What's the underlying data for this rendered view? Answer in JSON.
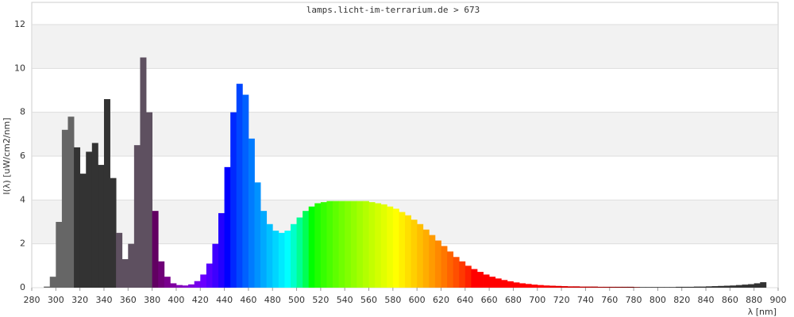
{
  "chart_data": {
    "type": "spectrum",
    "title": "lamps.licht-im-terrarium.de > 673",
    "y_label": "I(λ)  [uW/cm2/nm]",
    "x_label": "λ [nm]",
    "xlim": [
      280,
      900
    ],
    "ylim": [
      0,
      12
    ],
    "xticks": [
      280,
      300,
      320,
      340,
      360,
      380,
      400,
      420,
      440,
      460,
      480,
      500,
      520,
      540,
      560,
      580,
      600,
      620,
      640,
      660,
      680,
      700,
      720,
      740,
      760,
      780,
      800,
      820,
      840,
      860,
      880,
      900
    ],
    "yticks": [
      0,
      2,
      4,
      6,
      8,
      10,
      12
    ],
    "grid": true,
    "x": [
      290,
      295,
      300,
      305,
      310,
      315,
      320,
      325,
      330,
      335,
      340,
      345,
      350,
      355,
      360,
      365,
      370,
      375,
      380,
      385,
      390,
      395,
      400,
      405,
      410,
      415,
      420,
      425,
      430,
      435,
      440,
      445,
      450,
      455,
      460,
      465,
      470,
      475,
      480,
      485,
      490,
      495,
      500,
      505,
      510,
      515,
      520,
      525,
      530,
      535,
      540,
      545,
      550,
      555,
      560,
      565,
      570,
      575,
      580,
      585,
      590,
      595,
      600,
      605,
      610,
      615,
      620,
      625,
      630,
      635,
      640,
      645,
      650,
      655,
      660,
      665,
      670,
      675,
      680,
      685,
      690,
      695,
      700,
      705,
      710,
      715,
      720,
      725,
      730,
      735,
      740,
      745,
      750,
      755,
      760,
      765,
      770,
      775,
      780,
      785,
      790,
      795,
      800,
      805,
      810,
      815,
      820,
      825,
      830,
      835,
      840,
      845,
      850,
      855,
      860,
      865,
      870,
      875,
      880,
      885
    ],
    "values": [
      0.05,
      0.5,
      3.0,
      7.2,
      7.8,
      6.4,
      5.2,
      6.2,
      6.6,
      5.6,
      8.6,
      5.0,
      2.5,
      1.3,
      2.0,
      6.5,
      10.5,
      8.0,
      3.5,
      1.2,
      0.5,
      0.2,
      0.12,
      0.1,
      0.15,
      0.3,
      0.6,
      1.1,
      2.0,
      3.4,
      5.5,
      8.0,
      9.3,
      8.8,
      6.8,
      4.8,
      3.5,
      2.9,
      2.6,
      2.5,
      2.6,
      2.9,
      3.2,
      3.5,
      3.7,
      3.85,
      3.9,
      3.95,
      3.95,
      3.95,
      3.95,
      3.95,
      3.95,
      3.95,
      3.9,
      3.85,
      3.8,
      3.7,
      3.6,
      3.45,
      3.3,
      3.1,
      2.9,
      2.65,
      2.4,
      2.15,
      1.9,
      1.65,
      1.4,
      1.2,
      1.0,
      0.85,
      0.72,
      0.6,
      0.5,
      0.42,
      0.35,
      0.29,
      0.24,
      0.2,
      0.17,
      0.14,
      0.12,
      0.1,
      0.09,
      0.08,
      0.07,
      0.06,
      0.06,
      0.05,
      0.05,
      0.05,
      0.04,
      0.04,
      0.04,
      0.04,
      0.04,
      0.04,
      0.03,
      0.03,
      0.03,
      0.03,
      0.03,
      0.03,
      0.03,
      0.04,
      0.04,
      0.04,
      0.05,
      0.05,
      0.06,
      0.07,
      0.08,
      0.09,
      0.1,
      0.12,
      0.14,
      0.16,
      0.2,
      0.25
    ]
  }
}
